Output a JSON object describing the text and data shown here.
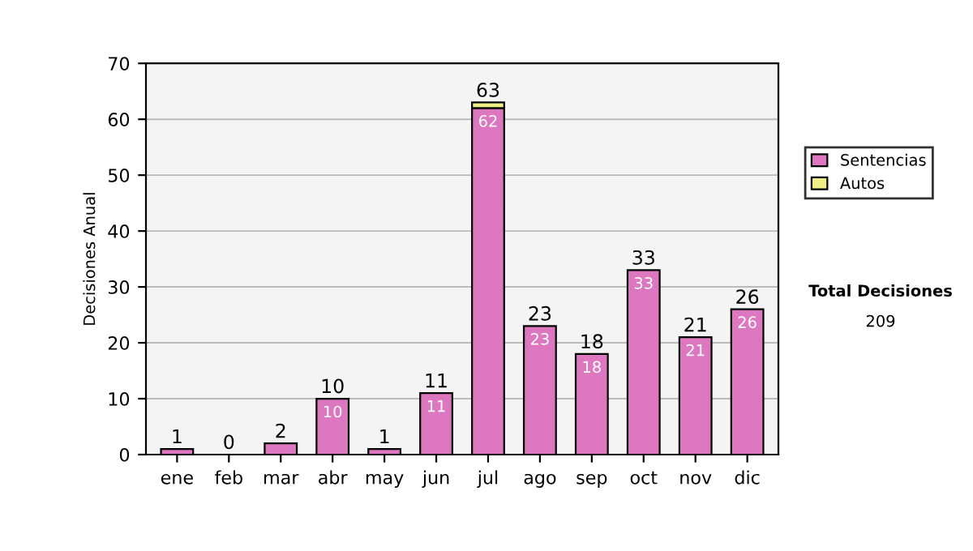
{
  "chart_data": {
    "type": "bar",
    "ylabel": "Decisiones Anual",
    "categories": [
      "ene",
      "feb",
      "mar",
      "abr",
      "may",
      "jun",
      "jul",
      "ago",
      "sep",
      "oct",
      "nov",
      "dic"
    ],
    "stacked": true,
    "series": [
      {
        "name": "Sentencias",
        "color": "#dd77c0",
        "values": [
          1,
          0,
          2,
          10,
          1,
          11,
          62,
          23,
          18,
          33,
          21,
          26
        ],
        "value_labels": [
          null,
          null,
          null,
          "10",
          null,
          "11",
          "62",
          "23",
          "18",
          "33",
          "21",
          "26"
        ]
      },
      {
        "name": "Autos",
        "color": "#eeee88",
        "values": [
          0,
          0,
          0,
          0,
          0,
          0,
          1,
          0,
          0,
          0,
          0,
          0
        ]
      }
    ],
    "totals": [
      "1",
      "0",
      "2",
      "10",
      "1",
      "11",
      "63",
      "23",
      "18",
      "33",
      "21",
      "26"
    ],
    "ylim": [
      0,
      70
    ],
    "yticks": [
      0,
      10,
      20,
      30,
      40,
      50,
      60,
      70
    ],
    "grid": "y",
    "legend": "right",
    "annotations": [
      "Total Decisiones",
      "209"
    ]
  }
}
